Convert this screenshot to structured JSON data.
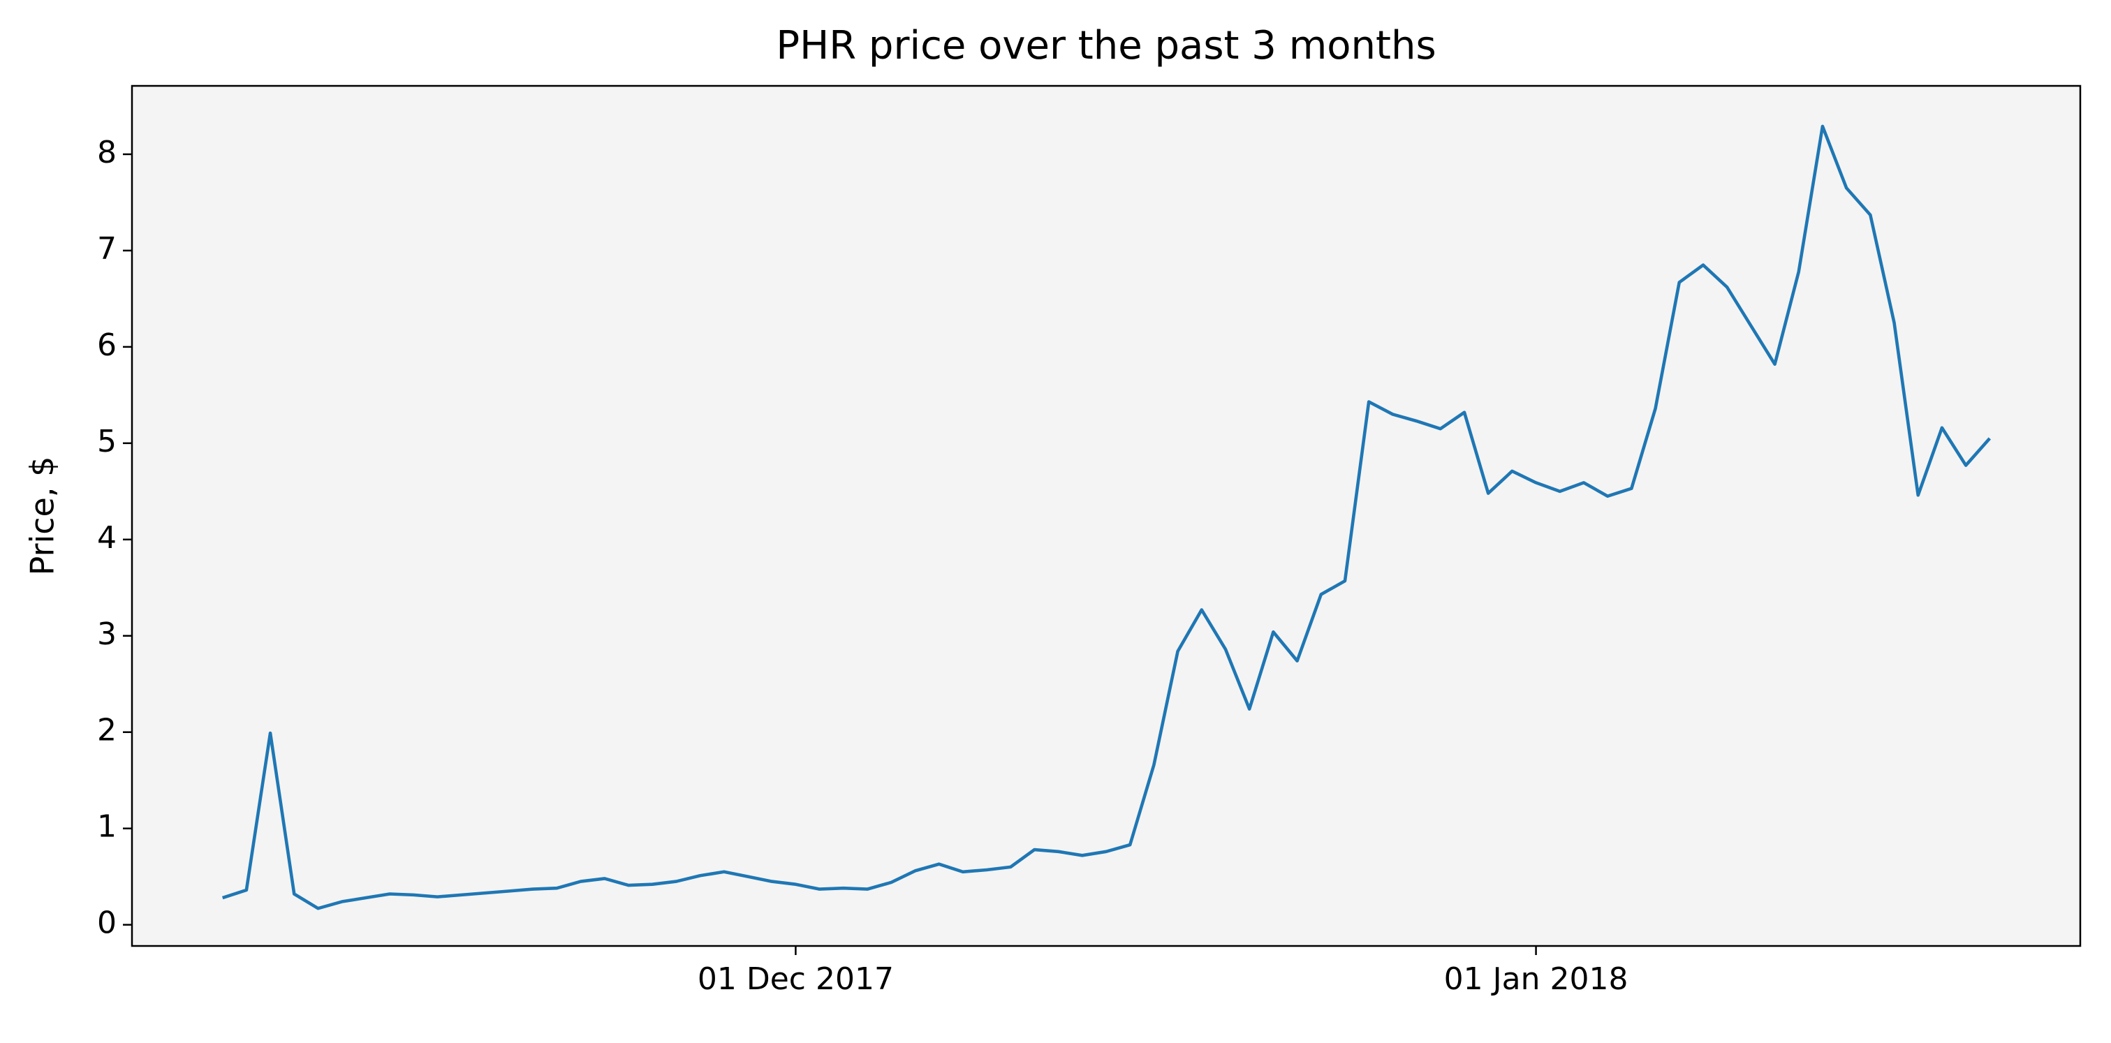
{
  "chart_data": {
    "type": "line",
    "title": "PHR price over the past 3 months",
    "y_label": "Price, $",
    "x": [
      "2017-11-07",
      "2017-11-08",
      "2017-11-09",
      "2017-11-10",
      "2017-11-11",
      "2017-11-12",
      "2017-11-13",
      "2017-11-14",
      "2017-11-15",
      "2017-11-16",
      "2017-11-17",
      "2017-11-18",
      "2017-11-19",
      "2017-11-20",
      "2017-11-21",
      "2017-11-22",
      "2017-11-23",
      "2017-11-24",
      "2017-11-25",
      "2017-11-26",
      "2017-11-27",
      "2017-11-28",
      "2017-11-29",
      "2017-11-30",
      "2017-12-01",
      "2017-12-02",
      "2017-12-03",
      "2017-12-04",
      "2017-12-05",
      "2017-12-06",
      "2017-12-07",
      "2017-12-08",
      "2017-12-09",
      "2017-12-10",
      "2017-12-11",
      "2017-12-12",
      "2017-12-13",
      "2017-12-14",
      "2017-12-15",
      "2017-12-16",
      "2017-12-17",
      "2017-12-18",
      "2017-12-19",
      "2017-12-20",
      "2017-12-21",
      "2017-12-22",
      "2017-12-23",
      "2017-12-24",
      "2017-12-25",
      "2017-12-26",
      "2017-12-27",
      "2017-12-28",
      "2017-12-29",
      "2017-12-30",
      "2017-12-31",
      "2018-01-01",
      "2018-01-02",
      "2018-01-03",
      "2018-01-04",
      "2018-01-05",
      "2018-01-06",
      "2018-01-07",
      "2018-01-08",
      "2018-01-09",
      "2018-01-10",
      "2018-01-11",
      "2018-01-12",
      "2018-01-13",
      "2018-01-14",
      "2018-01-15",
      "2018-01-16",
      "2018-01-17",
      "2018-01-18",
      "2018-01-19",
      "2018-01-20"
    ],
    "series": [
      {
        "color": "#1f77b4",
        "values": [
          0.28,
          0.36,
          1.99,
          0.32,
          0.17,
          0.24,
          0.28,
          0.32,
          0.31,
          0.29,
          0.31,
          0.33,
          0.35,
          0.37,
          0.38,
          0.45,
          0.48,
          0.41,
          0.42,
          0.45,
          0.51,
          0.55,
          0.5,
          0.45,
          0.42,
          0.37,
          0.38,
          0.37,
          0.44,
          0.56,
          0.63,
          0.55,
          0.57,
          0.6,
          0.78,
          0.76,
          0.72,
          0.76,
          0.83,
          1.66,
          2.84,
          3.27,
          2.86,
          2.24,
          3.04,
          2.74,
          3.43,
          3.57,
          5.43,
          5.3,
          5.23,
          5.15,
          5.32,
          4.48,
          4.71,
          4.59,
          4.5,
          4.59,
          4.45,
          4.53,
          5.36,
          6.67,
          6.85,
          6.62,
          6.22,
          5.82,
          6.78,
          8.29,
          7.65,
          7.37,
          6.25,
          4.46,
          5.16,
          4.77,
          5.05
        ]
      }
    ],
    "xlim": [
      "2017-11-03T05:00:00Z",
      "2018-01-23T19:00:00Z"
    ],
    "xticks": [
      {
        "value": "2017-12-01",
        "label": "01 Dec 2017"
      },
      {
        "value": "2018-01-01",
        "label": "01 Jan 2018"
      }
    ],
    "ylim": [
      -0.22,
      8.71
    ],
    "yticks": [
      0,
      1,
      2,
      3,
      4,
      5,
      6,
      7,
      8
    ],
    "background": "#f4f4f4"
  }
}
